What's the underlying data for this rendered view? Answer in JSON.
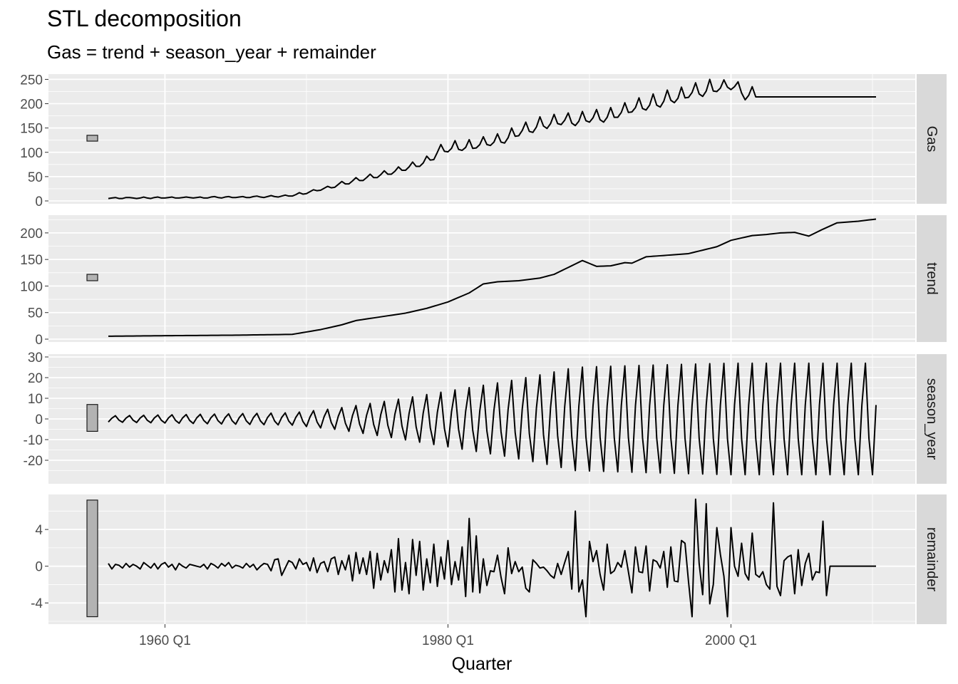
{
  "chart_data": {
    "type": "line",
    "title": "STL decomposition",
    "subtitle": "Gas = trend + season_year + remainder",
    "xlabel": "Quarter",
    "x_start": "1956 Q1",
    "x_end": "2010 Q2",
    "x_ticks": [
      "1960 Q1",
      "1980 Q1",
      "2000 Q1"
    ],
    "grid": true,
    "panels": [
      {
        "name": "Gas",
        "ylim": [
          0,
          255
        ],
        "yticks": [
          "0",
          "50",
          "100",
          "150",
          "200",
          "250"
        ],
        "scale_bar": [
          123,
          135
        ],
        "season_amplitude": [
          1.5,
          32
        ],
        "values": [
          5,
          6,
          7,
          5,
          5,
          7,
          7,
          6,
          5,
          6,
          8,
          6,
          5,
          7,
          8,
          6,
          6,
          7,
          8,
          6,
          6,
          7,
          8,
          7,
          6,
          7,
          8,
          6,
          6,
          8,
          9,
          7,
          6,
          8,
          9,
          7,
          7,
          8,
          9,
          7,
          7,
          9,
          10,
          8,
          7,
          9,
          11,
          9,
          8,
          10,
          12,
          10,
          10,
          13,
          17,
          14,
          15,
          19,
          23,
          21,
          22,
          26,
          30,
          27,
          28,
          34,
          40,
          35,
          35,
          41,
          48,
          42,
          42,
          48,
          55,
          48,
          48,
          54,
          62,
          55,
          55,
          61,
          70,
          63,
          63,
          70,
          80,
          71,
          71,
          78,
          92,
          84,
          85,
          100,
          116,
          102,
          101,
          108,
          124,
          106,
          104,
          110,
          126,
          108,
          109,
          116,
          132,
          116,
          114,
          121,
          138,
          121,
          119,
          130,
          150,
          133,
          134,
          145,
          162,
          143,
          141,
          152,
          173,
          154,
          149,
          159,
          178,
          159,
          157,
          166,
          181,
          160,
          155,
          164,
          184,
          165,
          162,
          171,
          188,
          167,
          162,
          172,
          192,
          172,
          172,
          182,
          202,
          182,
          183,
          192,
          212,
          190,
          187,
          197,
          220,
          197,
          193,
          205,
          228,
          207,
          202,
          211,
          234,
          212,
          213,
          223,
          243,
          220,
          215,
          226,
          250,
          226,
          225,
          232,
          249,
          234,
          229,
          235,
          245,
          222,
          208,
          217,
          235,
          214
        ],
        "first_values": [
          5,
          6,
          7,
          5
        ]
      },
      {
        "name": "trend",
        "ylim": [
          0,
          228
        ],
        "yticks": [
          "0",
          "50",
          "100",
          "150",
          "200"
        ],
        "scale_bar": [
          110,
          122
        ],
        "knots": [
          [
            "1956 Q1",
            5.5
          ],
          [
            "1960 Q1",
            6.5
          ],
          [
            "1965 Q1",
            7.5
          ],
          [
            "1969 Q1",
            9
          ],
          [
            "1971 Q1",
            18
          ],
          [
            "1972 Q3",
            27
          ],
          [
            "1973 Q3",
            35
          ],
          [
            "1975 Q3",
            43
          ],
          [
            "1977 Q1",
            49
          ],
          [
            "1978 Q3",
            58
          ],
          [
            "1980 Q1",
            70
          ],
          [
            "1981 Q3",
            87
          ],
          [
            "1982 Q3",
            104
          ],
          [
            "1983 Q3",
            108
          ],
          [
            "1985 Q1",
            110
          ],
          [
            "1986 Q3",
            115
          ],
          [
            "1987 Q3",
            122
          ],
          [
            "1988 Q3",
            135
          ],
          [
            "1989 Q3",
            148
          ],
          [
            "1990 Q3",
            137
          ],
          [
            "1991 Q3",
            138
          ],
          [
            "1992 Q3",
            144
          ],
          [
            "1993 Q1",
            143
          ],
          [
            "1994 Q1",
            155
          ],
          [
            "1995 Q3",
            158
          ],
          [
            "1997 Q1",
            161
          ],
          [
            "1999 Q1",
            174
          ],
          [
            "2000 Q1",
            186
          ],
          [
            "2001 Q3",
            195
          ],
          [
            "2002 Q3",
            197
          ],
          [
            "2003 Q3",
            200
          ],
          [
            "2004 Q3",
            201
          ],
          [
            "2005 Q3",
            194
          ],
          [
            "2006 Q3",
            207
          ],
          [
            "2007 Q3",
            219
          ],
          [
            "2009 Q1",
            222
          ],
          [
            "2010 Q2",
            226
          ]
        ]
      },
      {
        "name": "season_year",
        "ylim": [
          -30,
          30
        ],
        "yticks": [
          "-20",
          "-10",
          "0",
          "10",
          "20",
          "30"
        ],
        "scale_bar": [
          -6,
          7
        ],
        "amplitude_knots": [
          [
            "1956 Q1",
            1.5
          ],
          [
            "1969 Q1",
            3
          ],
          [
            "1972 Q1",
            5
          ],
          [
            "1976 Q1",
            9
          ],
          [
            "1980 Q1",
            13.5
          ],
          [
            "1984 Q1",
            18
          ],
          [
            "1987 Q1",
            22
          ],
          [
            "1989 Q1",
            25
          ],
          [
            "1994 Q1",
            26
          ],
          [
            "2000 Q1",
            27
          ],
          [
            "2010 Q2",
            27
          ]
        ],
        "pattern": [
          -1.0,
          0.25,
          1.0,
          -0.35
        ]
      },
      {
        "name": "remainder",
        "ylim": [
          -6,
          7.5
        ],
        "yticks": [
          "-4",
          "0",
          "4"
        ],
        "scale_bar": [
          -5.5,
          7.2
        ],
        "values": [
          0.3,
          -0.3,
          0.2,
          0.1,
          -0.2,
          0.3,
          -0.1,
          0.2,
          0.0,
          -0.3,
          0.4,
          0.1,
          -0.2,
          0.3,
          -0.3,
          0.2,
          0.4,
          -0.1,
          0.2,
          -0.4,
          0.3,
          0.0,
          -0.2,
          0.2,
          0.1,
          0.0,
          -0.1,
          0.2,
          -0.3,
          0.3,
          0.1,
          -0.2,
          0.3,
          0.0,
          0.4,
          -0.2,
          0.1,
          0.0,
          -0.2,
          0.3,
          -0.1,
          0.2,
          -0.4,
          0.0,
          0.3,
          0.2,
          -0.5,
          0.7,
          0.8,
          -1.0,
          -0.2,
          0.6,
          0.4,
          -0.3,
          0.8,
          0.2,
          0.4,
          -0.5,
          0.9,
          -0.7,
          0.3,
          0.5,
          -0.6,
          0.8,
          1.0,
          -0.9,
          0.6,
          -0.4,
          1.2,
          -1.6,
          1.5,
          -0.8,
          0.9,
          -0.9,
          1.6,
          -2.4,
          1.4,
          -1.5,
          0.6,
          -0.7,
          1.8,
          -2.8,
          3.0,
          -2.6,
          0.4,
          -3.0,
          2.9,
          -1.0,
          2.7,
          -2.6,
          0.8,
          -1.8,
          2.4,
          -2.2,
          1.0,
          -1.4,
          2.8,
          -2.0,
          0.5,
          -1.5,
          2.1,
          -3.3,
          5.2,
          -2.8,
          3.3,
          -2.9,
          0.8,
          -2.1,
          -0.5,
          -0.6,
          1.2,
          -1.2,
          -3.0,
          2.0,
          -0.8,
          0.5,
          -0.6,
          -0.1,
          -2.4,
          -2.8,
          0.7,
          0.3,
          -0.2,
          -0.1,
          -0.5,
          -1.0,
          -1.3,
          0.3,
          -0.9,
          0.4,
          1.6,
          -2.5,
          6.0,
          -2.8,
          -1.5,
          -5.5,
          2.7,
          0.5,
          1.7,
          -0.9,
          -2.6,
          2.4,
          -0.8,
          -0.5,
          0.4,
          -0.1,
          1.7,
          -0.6,
          -2.9,
          2.1,
          -0.6,
          -0.7,
          2.2,
          -2.7,
          0.7,
          0.5,
          -0.2,
          1.6,
          -2.3,
          2.1,
          -1.6,
          -1.7,
          2.8,
          2.5,
          -1.7,
          -5.5,
          7.3,
          0.3,
          -3.1,
          6.8,
          -4.1,
          -2.0,
          4.2,
          1.3,
          -1.1,
          -5.5,
          4.2,
          0.0,
          -1.1,
          2.5,
          -0.8,
          -1.5,
          3.6,
          -0.9,
          -1.2,
          -0.6,
          -2.0,
          -2.5,
          6.9,
          -2.2,
          -3.2,
          0.6,
          1.0,
          1.2,
          -3.0,
          1.8,
          -2.1,
          0.3,
          1.4,
          -1.5,
          -0.6,
          -0.7,
          4.9,
          -3.2
        ]
      }
    ]
  }
}
